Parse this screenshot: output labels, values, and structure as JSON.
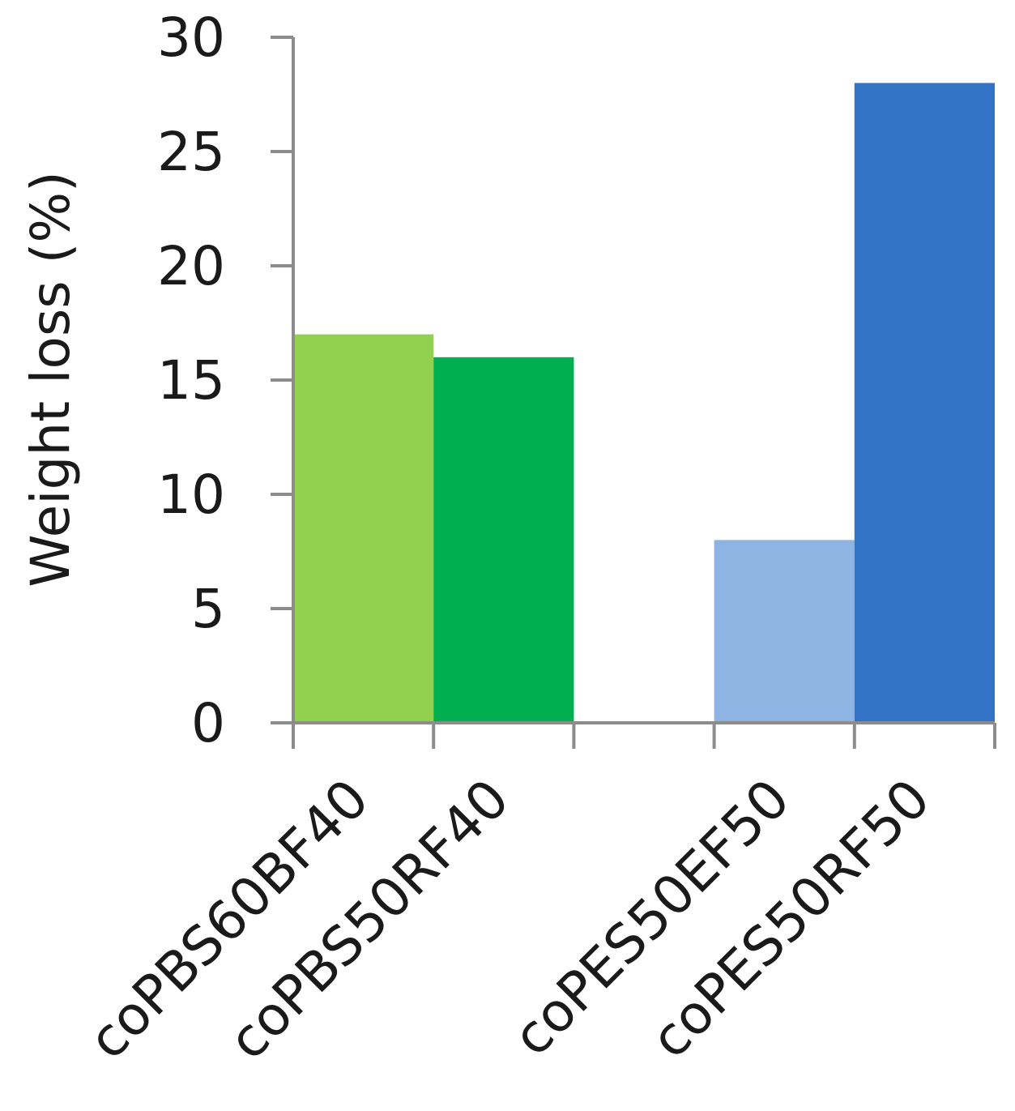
{
  "chart_data": {
    "type": "bar",
    "title": "",
    "xlabel": "",
    "ylabel": "Weight loss (%)",
    "ylim": [
      0,
      30
    ],
    "yticks": [
      0,
      5,
      10,
      15,
      20,
      25,
      30
    ],
    "grid": false,
    "legend": "none",
    "categories": [
      "coPBS60BF40",
      "coPBS50RF40",
      "",
      "coPES50EF50",
      "coPES50RF50"
    ],
    "values": [
      17,
      16,
      null,
      8,
      28
    ],
    "colors": [
      "#92d050",
      "#00b050",
      null,
      "#8eb4e3",
      "#3273c6"
    ]
  }
}
